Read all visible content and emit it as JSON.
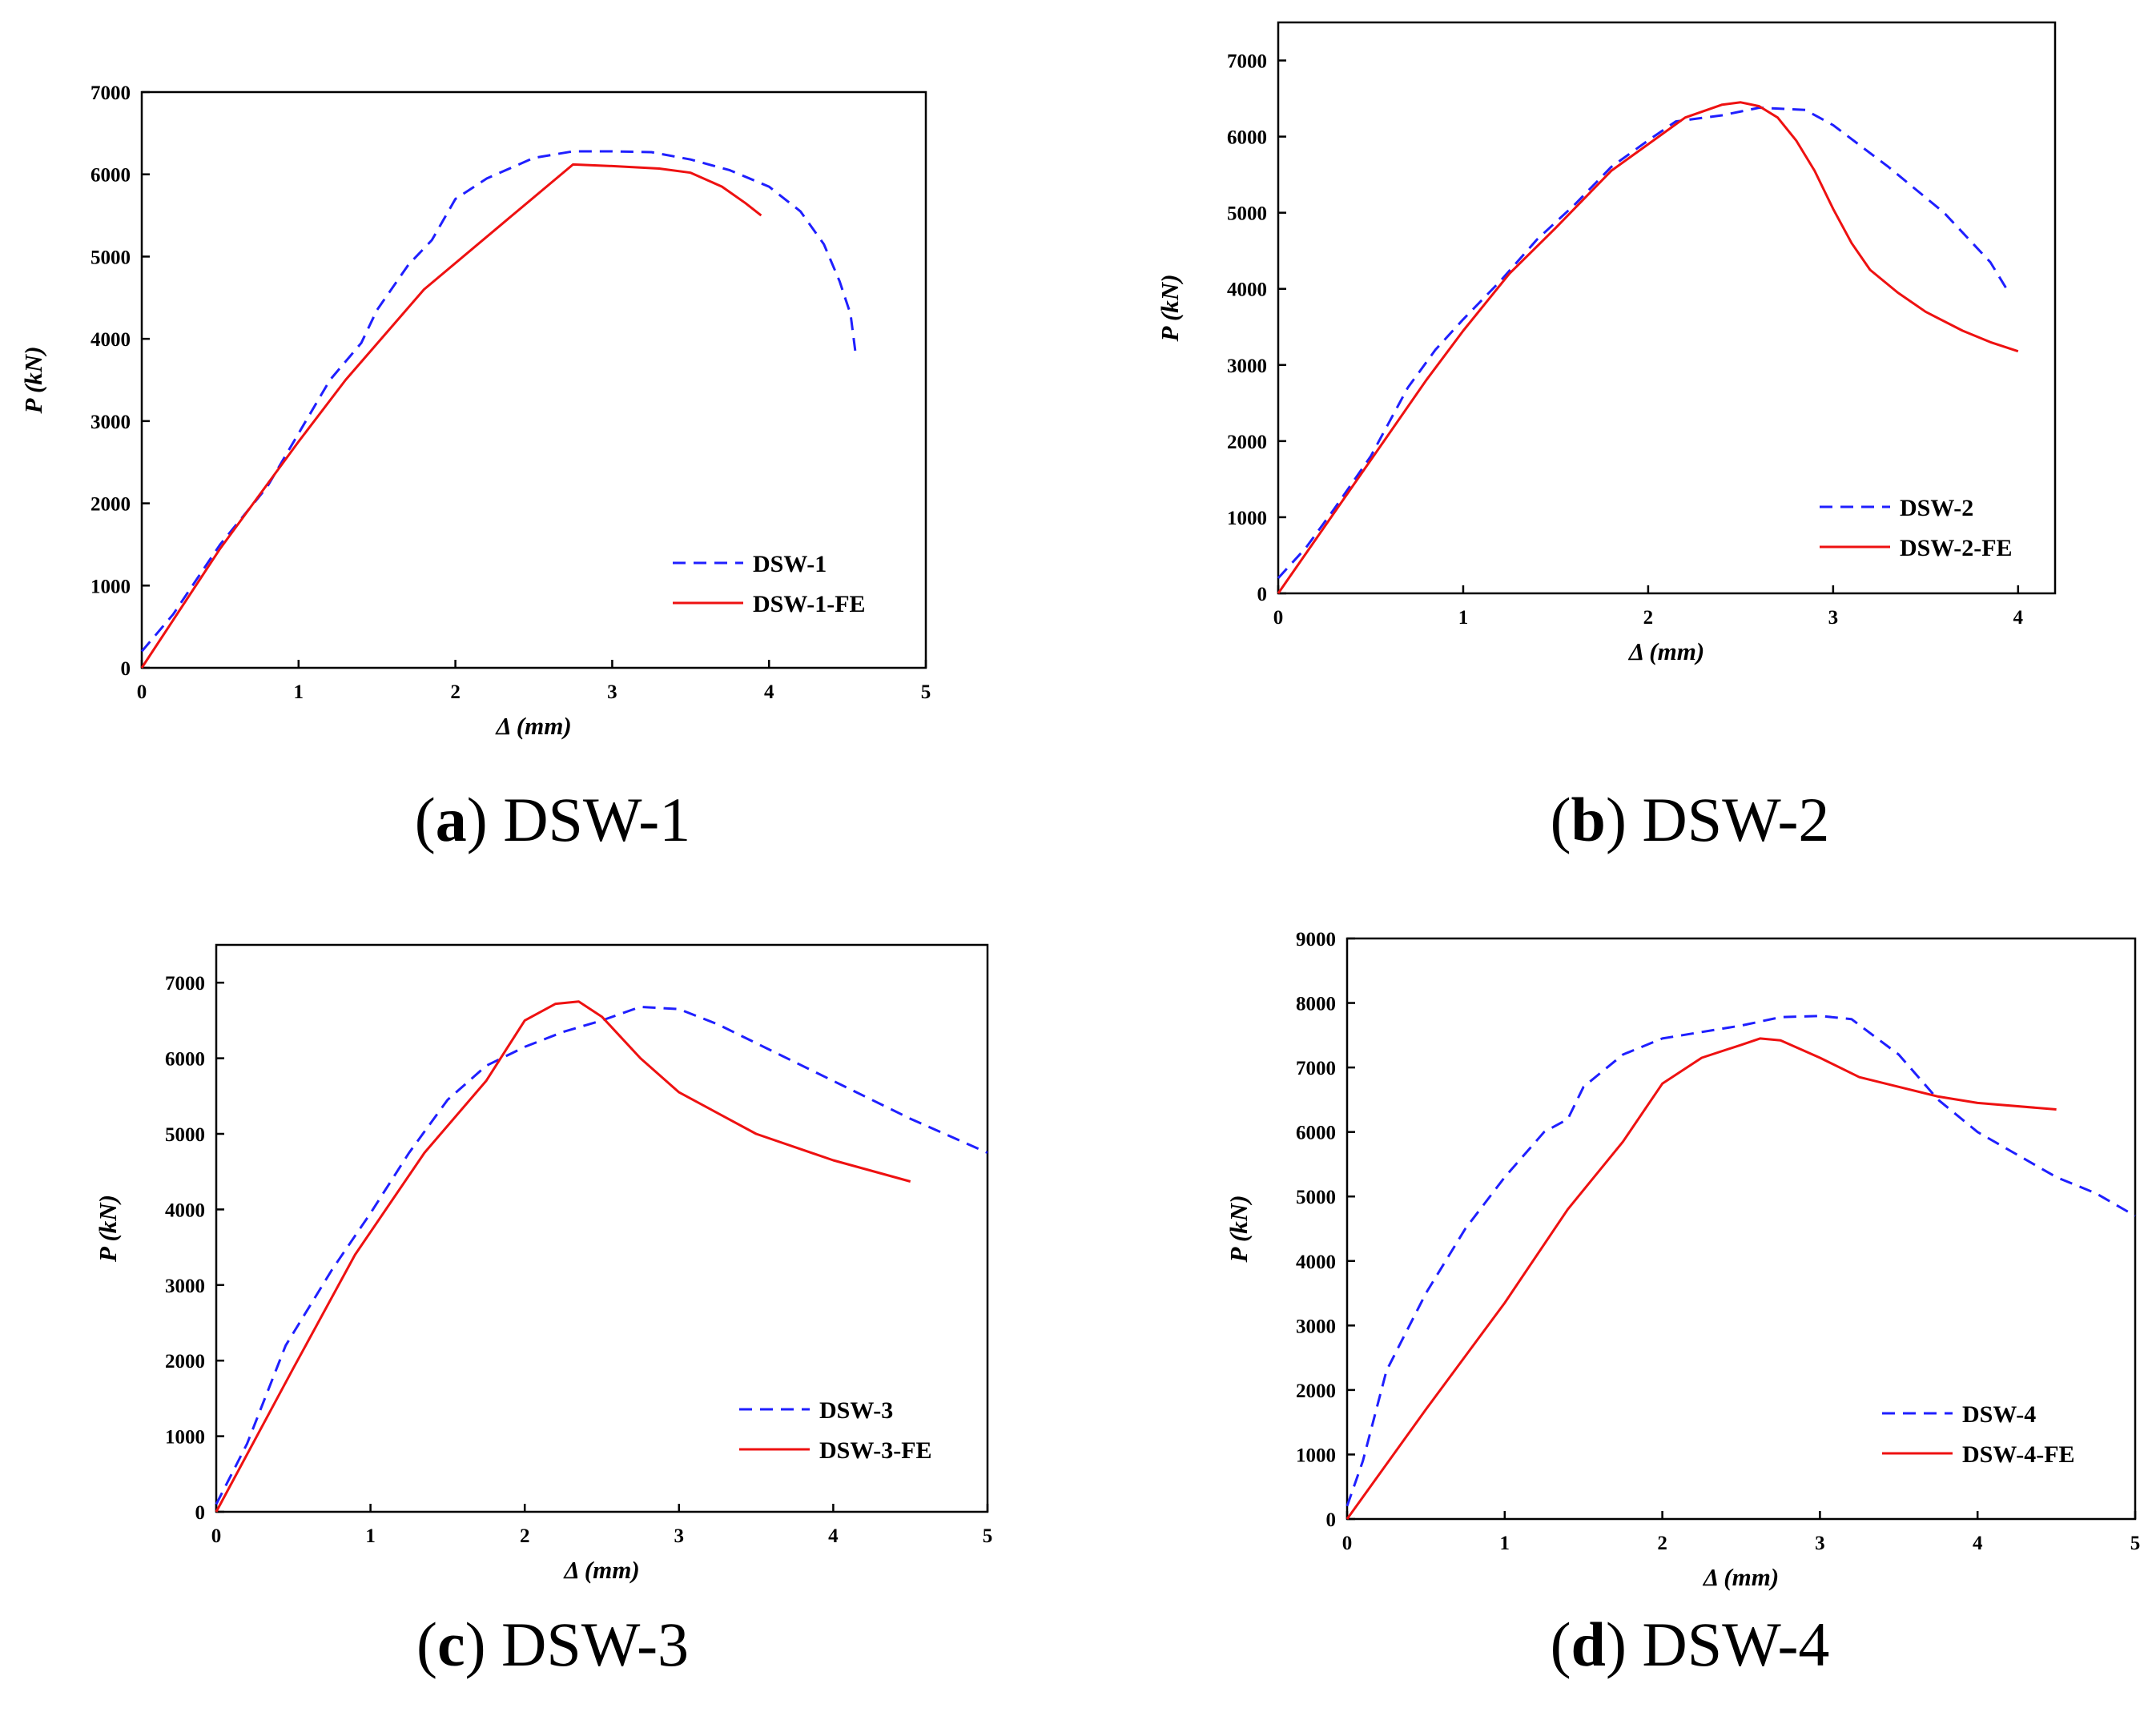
{
  "colors": {
    "test": "#1f1fff",
    "fe": "#ee1111",
    "axis": "#000000"
  },
  "chart_data": [
    {
      "type": "line",
      "panel_label": "a",
      "caption": "DSW-1",
      "xlabel": "Δ (mm)",
      "ylabel": "P (kN)",
      "xlim": [
        0,
        5
      ],
      "ylim": [
        0,
        7000
      ],
      "xticks": [
        0,
        1,
        2,
        3,
        4,
        5
      ],
      "yticks": [
        0,
        1000,
        2000,
        3000,
        4000,
        5000,
        6000,
        7000
      ],
      "legend_position": "bottom-right",
      "series": [
        {
          "name": "DSW-1",
          "style": "dashed",
          "color": "#1f1fff",
          "points": [
            [
              0,
              200
            ],
            [
              0.2,
              650
            ],
            [
              0.5,
              1500
            ],
            [
              0.8,
              2200
            ],
            [
              1.0,
              2850
            ],
            [
              1.2,
              3500
            ],
            [
              1.4,
              3950
            ],
            [
              1.5,
              4350
            ],
            [
              1.7,
              4900
            ],
            [
              1.85,
              5200
            ],
            [
              2.0,
              5700
            ],
            [
              2.2,
              5950
            ],
            [
              2.5,
              6200
            ],
            [
              2.75,
              6280
            ],
            [
              3.0,
              6280
            ],
            [
              3.25,
              6270
            ],
            [
              3.5,
              6180
            ],
            [
              3.75,
              6050
            ],
            [
              4.0,
              5850
            ],
            [
              4.2,
              5550
            ],
            [
              4.35,
              5150
            ],
            [
              4.45,
              4700
            ],
            [
              4.52,
              4300
            ],
            [
              4.55,
              3850
            ]
          ]
        },
        {
          "name": "DSW-1-FE",
          "style": "solid",
          "color": "#ee1111",
          "points": [
            [
              0,
              0
            ],
            [
              0.5,
              1450
            ],
            [
              1.0,
              2750
            ],
            [
              1.3,
              3500
            ],
            [
              1.8,
              4600
            ],
            [
              2.3,
              5400
            ],
            [
              2.75,
              6120
            ],
            [
              3.0,
              6100
            ],
            [
              3.3,
              6070
            ],
            [
              3.5,
              6020
            ],
            [
              3.7,
              5850
            ],
            [
              3.85,
              5650
            ],
            [
              3.95,
              5500
            ]
          ]
        }
      ]
    },
    {
      "type": "line",
      "panel_label": "b",
      "caption": "DSW-2",
      "xlabel": "Δ (mm)",
      "ylabel": "P (kN)",
      "xlim": [
        0,
        4.2
      ],
      "ylim": [
        0,
        7500
      ],
      "xticks": [
        0,
        1,
        2,
        3,
        4
      ],
      "yticks": [
        0,
        1000,
        2000,
        3000,
        4000,
        5000,
        6000,
        7000
      ],
      "legend_position": "bottom-right",
      "series": [
        {
          "name": "DSW-2",
          "style": "dashed",
          "color": "#1f1fff",
          "points": [
            [
              0,
              200
            ],
            [
              0.15,
              600
            ],
            [
              0.3,
              1100
            ],
            [
              0.5,
              1800
            ],
            [
              0.7,
              2700
            ],
            [
              0.85,
              3200
            ],
            [
              1.0,
              3600
            ],
            [
              1.2,
              4100
            ],
            [
              1.4,
              4650
            ],
            [
              1.6,
              5100
            ],
            [
              1.8,
              5600
            ],
            [
              2.0,
              5950
            ],
            [
              2.15,
              6200
            ],
            [
              2.4,
              6280
            ],
            [
              2.6,
              6380
            ],
            [
              2.85,
              6350
            ],
            [
              3.0,
              6150
            ],
            [
              3.3,
              5600
            ],
            [
              3.6,
              5000
            ],
            [
              3.85,
              4350
            ],
            [
              3.95,
              3950
            ]
          ]
        },
        {
          "name": "DSW-2-FE",
          "style": "solid",
          "color": "#ee1111",
          "points": [
            [
              0,
              0
            ],
            [
              0.2,
              700
            ],
            [
              0.4,
              1400
            ],
            [
              0.6,
              2100
            ],
            [
              0.8,
              2800
            ],
            [
              1.0,
              3450
            ],
            [
              1.25,
              4200
            ],
            [
              1.5,
              4800
            ],
            [
              1.8,
              5550
            ],
            [
              2.0,
              5900
            ],
            [
              2.2,
              6250
            ],
            [
              2.4,
              6420
            ],
            [
              2.5,
              6450
            ],
            [
              2.6,
              6400
            ],
            [
              2.7,
              6250
            ],
            [
              2.8,
              5950
            ],
            [
              2.9,
              5550
            ],
            [
              3.0,
              5050
            ],
            [
              3.1,
              4600
            ],
            [
              3.2,
              4250
            ],
            [
              3.35,
              3950
            ],
            [
              3.5,
              3700
            ],
            [
              3.7,
              3450
            ],
            [
              3.85,
              3300
            ],
            [
              4.0,
              3180
            ]
          ]
        }
      ]
    },
    {
      "type": "line",
      "panel_label": "c",
      "caption": "DSW-3",
      "xlabel": "Δ (mm)",
      "ylabel": "P (kN)",
      "xlim": [
        0,
        5
      ],
      "ylim": [
        0,
        7500
      ],
      "xticks": [
        0,
        1,
        2,
        3,
        4,
        5
      ],
      "yticks": [
        0,
        1000,
        2000,
        3000,
        4000,
        5000,
        6000,
        7000
      ],
      "legend_position": "bottom-right",
      "series": [
        {
          "name": "DSW-3",
          "style": "dashed",
          "color": "#1f1fff",
          "points": [
            [
              0,
              100
            ],
            [
              0.2,
              900
            ],
            [
              0.45,
              2200
            ],
            [
              0.75,
              3200
            ],
            [
              1.0,
              3950
            ],
            [
              1.25,
              4750
            ],
            [
              1.5,
              5450
            ],
            [
              1.75,
              5900
            ],
            [
              2.0,
              6150
            ],
            [
              2.25,
              6350
            ],
            [
              2.5,
              6500
            ],
            [
              2.75,
              6680
            ],
            [
              3.0,
              6650
            ],
            [
              3.25,
              6450
            ],
            [
              3.5,
              6200
            ],
            [
              4.0,
              5700
            ],
            [
              4.5,
              5200
            ],
            [
              5.0,
              4750
            ]
          ]
        },
        {
          "name": "DSW-3-FE",
          "style": "solid",
          "color": "#ee1111",
          "points": [
            [
              0,
              0
            ],
            [
              0.5,
              1900
            ],
            [
              0.9,
              3400
            ],
            [
              1.35,
              4750
            ],
            [
              1.75,
              5700
            ],
            [
              2.0,
              6500
            ],
            [
              2.2,
              6720
            ],
            [
              2.35,
              6750
            ],
            [
              2.5,
              6550
            ],
            [
              2.75,
              6000
            ],
            [
              3.0,
              5550
            ],
            [
              3.5,
              5000
            ],
            [
              4.0,
              4650
            ],
            [
              4.5,
              4370
            ]
          ]
        }
      ]
    },
    {
      "type": "line",
      "panel_label": "d",
      "caption": "DSW-4",
      "xlabel": "Δ (mm)",
      "ylabel": "P (kN)",
      "xlim": [
        0,
        5
      ],
      "ylim": [
        0,
        9000
      ],
      "xticks": [
        0,
        1,
        2,
        3,
        4,
        5
      ],
      "yticks": [
        0,
        1000,
        2000,
        3000,
        4000,
        5000,
        6000,
        7000,
        8000,
        9000
      ],
      "legend_position": "bottom-right",
      "series": [
        {
          "name": "DSW-4",
          "style": "dashed",
          "color": "#1f1fff",
          "points": [
            [
              0,
              200
            ],
            [
              0.1,
              900
            ],
            [
              0.25,
              2300
            ],
            [
              0.5,
              3500
            ],
            [
              0.75,
              4500
            ],
            [
              1.0,
              5300
            ],
            [
              1.25,
              6000
            ],
            [
              1.4,
              6200
            ],
            [
              1.5,
              6700
            ],
            [
              1.75,
              7200
            ],
            [
              2.0,
              7450
            ],
            [
              2.25,
              7550
            ],
            [
              2.5,
              7650
            ],
            [
              2.75,
              7780
            ],
            [
              3.0,
              7800
            ],
            [
              3.2,
              7750
            ],
            [
              3.5,
              7200
            ],
            [
              3.75,
              6500
            ],
            [
              4.0,
              6000
            ],
            [
              4.25,
              5650
            ],
            [
              4.5,
              5300
            ],
            [
              4.75,
              5050
            ],
            [
              5.0,
              4700
            ]
          ]
        },
        {
          "name": "DSW-4-FE",
          "style": "solid",
          "color": "#ee1111",
          "points": [
            [
              0,
              0
            ],
            [
              0.5,
              1700
            ],
            [
              1.0,
              3350
            ],
            [
              1.4,
              4800
            ],
            [
              1.75,
              5850
            ],
            [
              2.0,
              6750
            ],
            [
              2.25,
              7150
            ],
            [
              2.5,
              7350
            ],
            [
              2.62,
              7450
            ],
            [
              2.75,
              7420
            ],
            [
              3.0,
              7150
            ],
            [
              3.25,
              6850
            ],
            [
              3.5,
              6700
            ],
            [
              3.75,
              6550
            ],
            [
              4.0,
              6450
            ],
            [
              4.5,
              6350
            ]
          ]
        }
      ]
    }
  ]
}
